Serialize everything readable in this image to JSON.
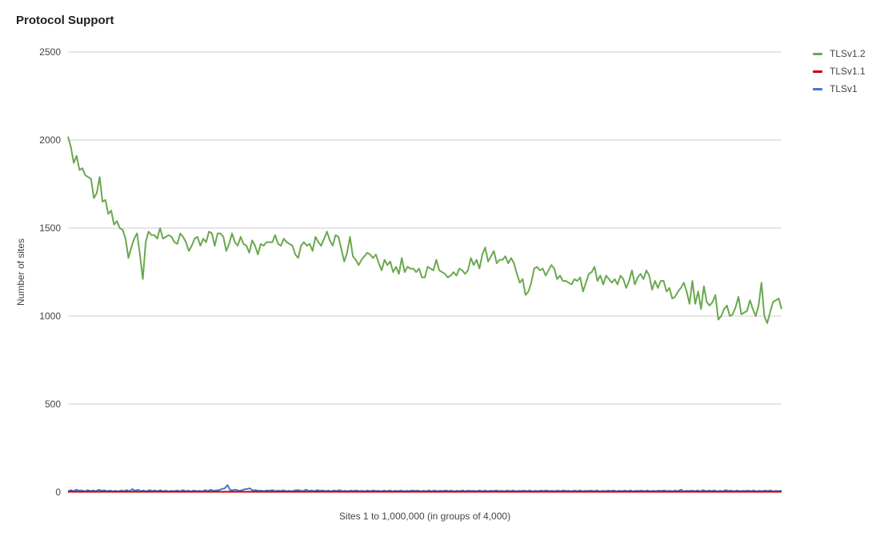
{
  "chart_data": {
    "type": "line",
    "title": "Protocol Support",
    "xlabel": "Sites 1 to 1,000,000 (in groups of 4,000)",
    "ylabel": "Number of sites",
    "ylim": [
      0,
      2500
    ],
    "yticks": [
      0,
      500,
      1000,
      1500,
      2000,
      2500
    ],
    "grid": true,
    "legend_position": "right",
    "series": [
      {
        "name": "TLSv1.2",
        "color": "#6aa84f",
        "values": [
          2020,
          1960,
          1870,
          1910,
          1830,
          1840,
          1800,
          1790,
          1780,
          1670,
          1700,
          1790,
          1650,
          1660,
          1580,
          1600,
          1520,
          1540,
          1500,
          1490,
          1440,
          1330,
          1390,
          1440,
          1470,
          1350,
          1210,
          1420,
          1480,
          1460,
          1460,
          1440,
          1500,
          1440,
          1450,
          1460,
          1450,
          1420,
          1410,
          1470,
          1450,
          1420,
          1370,
          1400,
          1440,
          1450,
          1400,
          1440,
          1420,
          1480,
          1470,
          1400,
          1470,
          1470,
          1450,
          1370,
          1410,
          1470,
          1420,
          1400,
          1450,
          1410,
          1400,
          1360,
          1430,
          1400,
          1350,
          1410,
          1400,
          1420,
          1420,
          1420,
          1460,
          1410,
          1400,
          1440,
          1420,
          1410,
          1400,
          1350,
          1330,
          1400,
          1420,
          1400,
          1410,
          1370,
          1450,
          1420,
          1400,
          1440,
          1480,
          1430,
          1400,
          1460,
          1450,
          1380,
          1310,
          1360,
          1450,
          1340,
          1320,
          1290,
          1320,
          1340,
          1360,
          1350,
          1330,
          1350,
          1300,
          1260,
          1320,
          1290,
          1310,
          1250,
          1280,
          1240,
          1330,
          1250,
          1280,
          1270,
          1270,
          1250,
          1270,
          1220,
          1220,
          1280,
          1270,
          1260,
          1320,
          1260,
          1250,
          1240,
          1220,
          1230,
          1250,
          1230,
          1270,
          1260,
          1240,
          1260,
          1330,
          1290,
          1320,
          1270,
          1350,
          1390,
          1310,
          1340,
          1370,
          1300,
          1320,
          1320,
          1340,
          1300,
          1330,
          1300,
          1240,
          1190,
          1210,
          1120,
          1140,
          1190,
          1270,
          1280,
          1260,
          1270,
          1230,
          1260,
          1290,
          1270,
          1210,
          1230,
          1200,
          1200,
          1190,
          1180,
          1210,
          1200,
          1220,
          1140,
          1190,
          1240,
          1250,
          1280,
          1200,
          1230,
          1180,
          1230,
          1210,
          1190,
          1210,
          1180,
          1230,
          1210,
          1160,
          1200,
          1260,
          1180,
          1220,
          1240,
          1210,
          1260,
          1230,
          1150,
          1200,
          1160,
          1200,
          1200,
          1140,
          1160,
          1100,
          1110,
          1140,
          1160,
          1190,
          1140,
          1070,
          1200,
          1070,
          1140,
          1040,
          1170,
          1080,
          1060,
          1080,
          1120,
          980,
          1000,
          1040,
          1060,
          1000,
          1010,
          1050,
          1110,
          1010,
          1020,
          1030,
          1090,
          1040,
          1000,
          1060,
          1190,
          1000,
          960,
          1020,
          1080,
          1090,
          1100,
          1040
        ]
      },
      {
        "name": "TLSv1.1",
        "color": "#cc0000",
        "values": [
          2,
          3,
          2,
          3,
          2,
          2,
          3,
          2,
          2,
          3,
          2,
          2,
          3,
          2,
          2,
          3,
          2,
          2,
          3,
          2,
          2,
          3,
          2,
          2,
          3,
          2,
          2,
          3,
          2,
          2,
          3,
          2,
          2,
          3,
          2,
          2,
          3,
          2,
          2,
          3,
          2,
          2,
          3,
          2,
          2,
          3,
          2,
          2,
          3,
          2,
          2,
          3,
          2,
          2,
          3,
          2,
          2,
          3,
          2,
          2,
          3,
          2,
          2,
          3,
          2,
          2,
          3,
          2,
          2,
          3,
          2,
          2,
          3,
          2,
          2,
          3,
          2,
          2,
          3,
          2,
          2,
          3,
          2,
          2,
          3,
          2,
          2,
          3,
          2,
          2,
          3,
          2,
          2,
          3,
          2,
          2,
          3,
          2,
          2,
          3,
          2,
          2,
          3,
          2,
          2,
          3,
          2,
          2,
          3,
          2,
          2,
          3,
          2,
          2,
          3,
          2,
          2,
          3,
          2,
          2,
          3,
          2,
          2,
          3,
          2,
          2,
          3,
          2,
          2,
          3,
          2,
          2,
          3,
          2,
          2,
          3,
          2,
          2,
          3,
          2,
          2,
          3,
          2,
          2,
          3,
          2,
          2,
          3,
          2,
          2,
          3,
          2,
          2,
          3,
          2,
          2,
          3,
          2,
          2,
          3,
          2,
          2,
          3,
          2,
          2,
          3,
          2,
          2,
          3,
          2,
          2,
          3,
          2,
          2,
          3,
          2,
          2,
          3,
          2,
          2,
          3,
          2,
          2,
          3,
          2,
          2,
          3,
          2,
          2,
          3,
          2,
          2,
          3,
          2,
          2,
          3,
          2,
          2,
          3,
          2,
          2,
          3,
          2,
          2,
          3,
          2,
          2,
          3,
          2,
          2,
          3,
          2,
          2,
          3,
          2,
          2,
          3,
          2,
          2,
          3,
          2,
          2,
          3,
          2,
          2,
          3,
          2,
          2,
          3,
          2,
          2,
          3,
          2,
          2,
          3,
          2,
          2,
          3,
          2,
          2,
          3,
          2,
          2,
          3,
          2,
          2,
          3,
          2,
          2,
          3,
          2,
          2,
          3,
          2,
          2,
          3,
          2,
          2,
          3,
          2
        ]
      },
      {
        "name": "TLSv1",
        "color": "#3c78d8",
        "values": [
          4,
          12,
          6,
          14,
          8,
          10,
          5,
          12,
          7,
          10,
          6,
          14,
          8,
          11,
          6,
          9,
          5,
          8,
          4,
          10,
          6,
          12,
          5,
          18,
          8,
          14,
          6,
          10,
          5,
          12,
          7,
          10,
          6,
          11,
          5,
          9,
          4,
          8,
          6,
          10,
          5,
          12,
          6,
          9,
          4,
          10,
          6,
          8,
          5,
          12,
          6,
          14,
          8,
          10,
          12,
          18,
          22,
          40,
          10,
          12,
          14,
          8,
          10,
          16,
          18,
          22,
          10,
          12,
          8,
          9,
          6,
          10,
          8,
          12,
          6,
          9,
          7,
          11,
          6,
          8,
          5,
          10,
          12,
          9,
          6,
          14,
          7,
          10,
          6,
          12,
          8,
          10,
          6,
          9,
          5,
          10,
          7,
          12,
          6,
          8,
          5,
          9,
          7,
          10,
          6,
          8,
          5,
          9,
          6,
          10,
          7,
          8,
          5,
          9,
          6,
          10,
          5,
          8,
          6,
          9,
          5,
          8,
          6,
          10,
          7,
          9,
          5,
          8,
          6,
          10,
          5,
          9,
          6,
          8,
          7,
          10,
          6,
          9,
          5,
          8,
          6,
          10,
          5,
          9,
          7,
          8,
          6,
          10,
          5,
          9,
          6,
          8,
          7,
          10,
          6,
          8,
          5,
          9,
          6,
          10,
          5,
          8,
          7,
          9,
          6,
          10,
          5,
          8,
          6,
          9,
          7,
          10,
          6,
          8,
          5,
          9,
          6,
          10,
          7,
          8,
          5,
          9,
          6,
          10,
          5,
          8,
          7,
          9,
          6,
          10,
          5,
          8,
          6,
          9,
          7,
          10,
          5,
          8,
          6,
          9,
          6,
          10,
          5,
          8,
          7,
          9,
          6,
          10,
          5,
          8,
          6,
          9,
          7,
          10,
          6,
          8,
          5,
          9,
          6,
          14,
          5,
          8,
          7,
          9,
          6,
          10,
          5,
          12,
          6,
          9,
          7,
          10,
          5,
          8,
          6,
          12,
          7,
          9,
          5,
          10,
          6,
          8,
          7,
          9,
          6,
          10,
          5,
          8,
          6,
          9,
          7,
          10,
          5,
          8,
          6,
          9
        ]
      }
    ]
  }
}
